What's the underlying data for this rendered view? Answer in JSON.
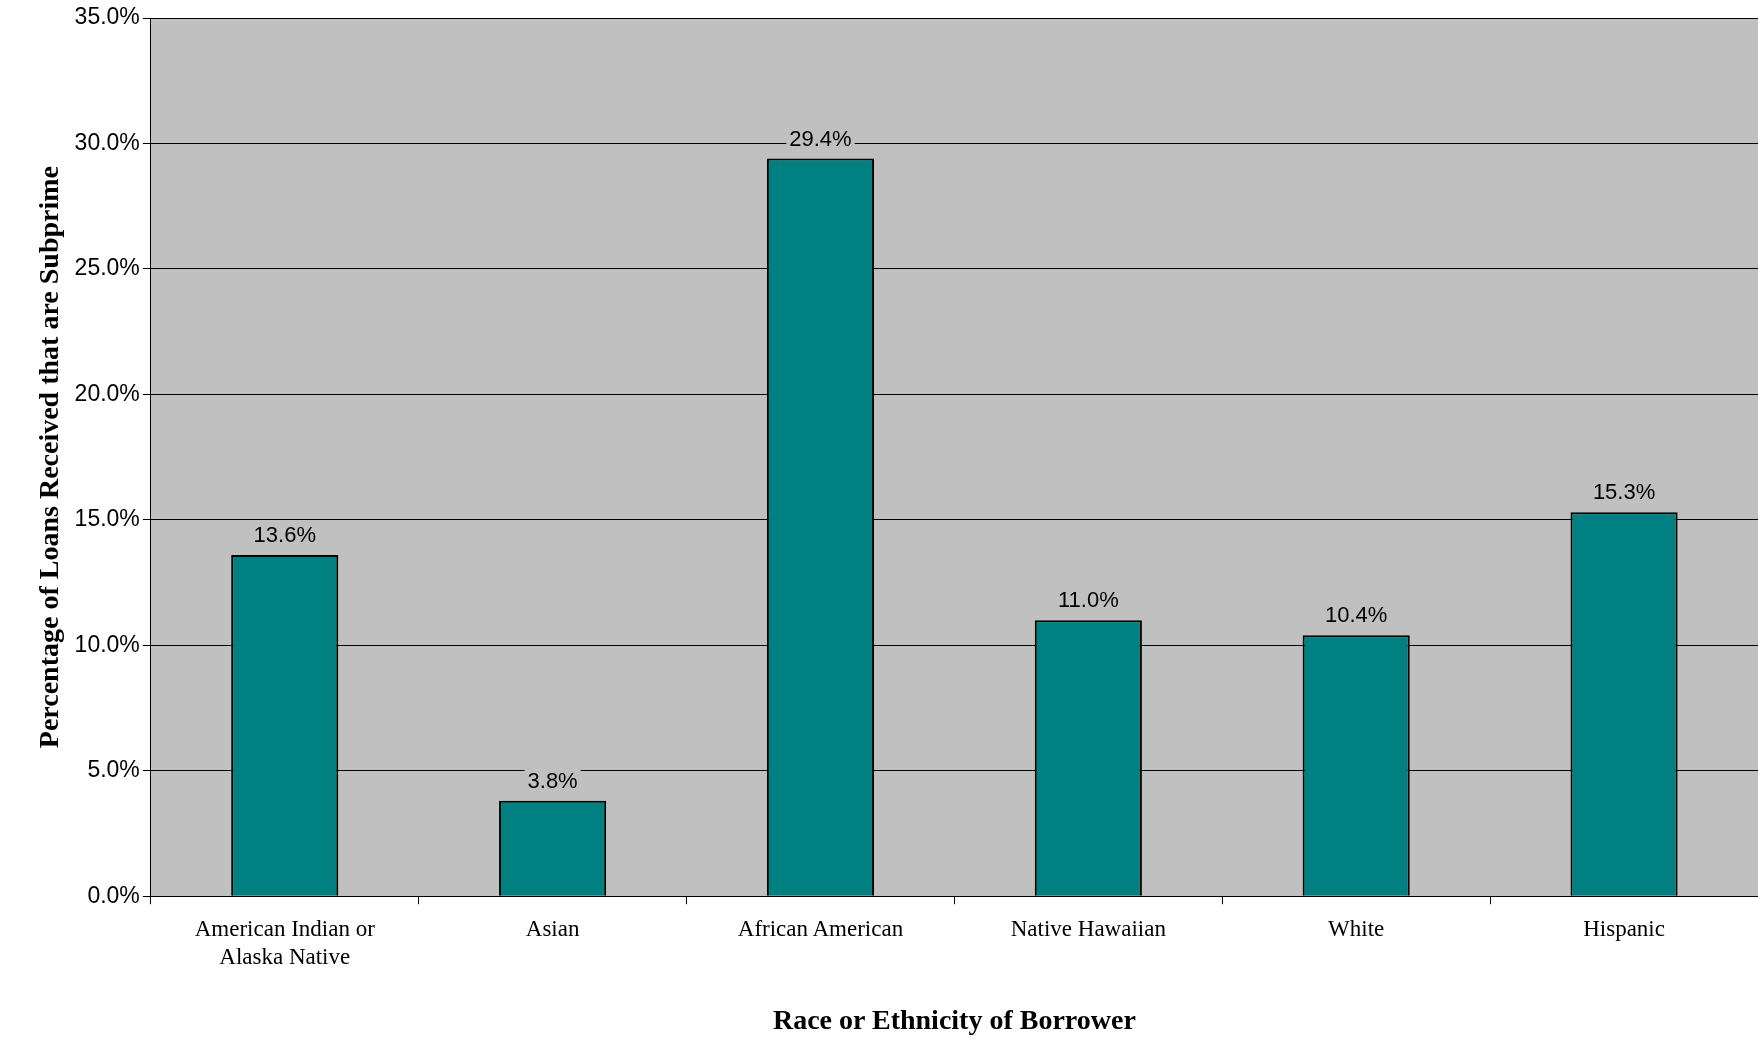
{
  "chart_data": {
    "type": "bar",
    "xlabel": "Race or Ethnicity of Borrower",
    "ylabel": "Percentage of Loans Received that are Subprime",
    "categories": [
      "American Indian or Alaska Native",
      "Asian",
      "African American",
      "Native Hawaiian",
      "White",
      "Hispanic"
    ],
    "values": [
      13.6,
      3.8,
      29.4,
      11.0,
      10.4,
      15.3
    ],
    "value_labels": [
      "13.6%",
      "3.8%",
      "29.4%",
      "11.0%",
      "10.4%",
      "15.3%"
    ],
    "color": "#008080",
    "ylim": [
      0,
      35
    ],
    "yticks": [
      {
        "value": 0,
        "label": "0.0%"
      },
      {
        "value": 5,
        "label": "5.0%"
      },
      {
        "value": 10,
        "label": "10.0%"
      },
      {
        "value": 15,
        "label": "15.0%"
      },
      {
        "value": 20,
        "label": "20.0%"
      },
      {
        "value": 25,
        "label": "25.0%"
      },
      {
        "value": 30,
        "label": "30.0%"
      },
      {
        "value": 35,
        "label": "35.0%"
      }
    ],
    "grid": "y",
    "legend": false
  }
}
